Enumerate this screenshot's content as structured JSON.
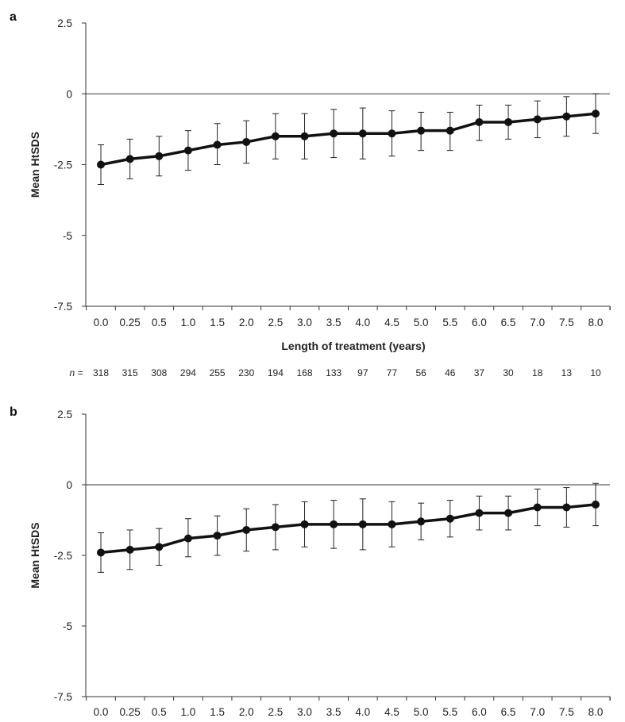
{
  "chart_data": [
    {
      "panel_label": "a",
      "type": "line",
      "xlabel": "Length of treatment (years)",
      "ylabel": "Mean HtSDS",
      "ylim": [
        -7.5,
        2.5
      ],
      "yticks": [
        "2.5",
        "0",
        "-2.5",
        "-5",
        "-7.5"
      ],
      "categories": [
        "0.0",
        "0.25",
        "0.5",
        "1.0",
        "1.5",
        "2.0",
        "2.5",
        "3.0",
        "3.5",
        "4.0",
        "4.5",
        "5.0",
        "5.5",
        "6.0",
        "6.5",
        "7.0",
        "7.5",
        "8.0"
      ],
      "series": [
        {
          "values": [
            -2.5,
            -2.3,
            -2.2,
            -2.0,
            -1.8,
            -1.7,
            -1.5,
            -1.5,
            -1.4,
            -1.4,
            -1.4,
            -1.3,
            -1.3,
            -1.0,
            -1.0,
            -0.9,
            -0.8,
            -0.7
          ],
          "error_low": [
            -3.2,
            -3.0,
            -2.9,
            -2.7,
            -2.5,
            -2.45,
            -2.3,
            -2.3,
            -2.25,
            -2.3,
            -2.2,
            -2.0,
            -2.0,
            -1.65,
            -1.6,
            -1.55,
            -1.5,
            -1.4
          ],
          "error_high": [
            -1.8,
            -1.6,
            -1.5,
            -1.3,
            -1.05,
            -0.95,
            -0.7,
            -0.7,
            -0.55,
            -0.5,
            -0.6,
            -0.65,
            -0.65,
            -0.4,
            -0.4,
            -0.25,
            -0.1,
            0.0
          ]
        }
      ],
      "n_label": "n =",
      "n_values": [
        "318",
        "315",
        "308",
        "294",
        "255",
        "230",
        "194",
        "168",
        "133",
        "97",
        "77",
        "56",
        "46",
        "37",
        "30",
        "18",
        "13",
        "10"
      ],
      "grid": false,
      "reference_line_y": 0
    },
    {
      "panel_label": "b",
      "type": "line",
      "xlabel": "",
      "ylabel": "Mean HtSDS",
      "ylim": [
        -7.5,
        2.5
      ],
      "yticks": [
        "2.5",
        "0",
        "-2.5",
        "-5",
        "-7.5"
      ],
      "categories": [
        "0.0",
        "0.25",
        "0.5",
        "1.0",
        "1.5",
        "2.0",
        "2.5",
        "3.0",
        "3.5",
        "4.0",
        "4.5",
        "5.0",
        "5.5",
        "6.0",
        "6.5",
        "7.0",
        "7.5",
        "8.0"
      ],
      "series": [
        {
          "values": [
            -2.4,
            -2.3,
            -2.2,
            -1.9,
            -1.8,
            -1.6,
            -1.5,
            -1.4,
            -1.4,
            -1.4,
            -1.4,
            -1.3,
            -1.2,
            -1.0,
            -1.0,
            -0.8,
            -0.8,
            -0.7
          ],
          "error_low": [
            -3.1,
            -3.0,
            -2.85,
            -2.55,
            -2.5,
            -2.35,
            -2.3,
            -2.2,
            -2.25,
            -2.3,
            -2.2,
            -1.95,
            -1.85,
            -1.6,
            -1.6,
            -1.45,
            -1.5,
            -1.45
          ],
          "error_high": [
            -1.7,
            -1.6,
            -1.55,
            -1.2,
            -1.1,
            -0.85,
            -0.7,
            -0.6,
            -0.55,
            -0.5,
            -0.6,
            -0.65,
            -0.55,
            -0.4,
            -0.4,
            -0.15,
            -0.1,
            0.05
          ]
        }
      ],
      "grid": false,
      "reference_line_y": 0
    }
  ]
}
